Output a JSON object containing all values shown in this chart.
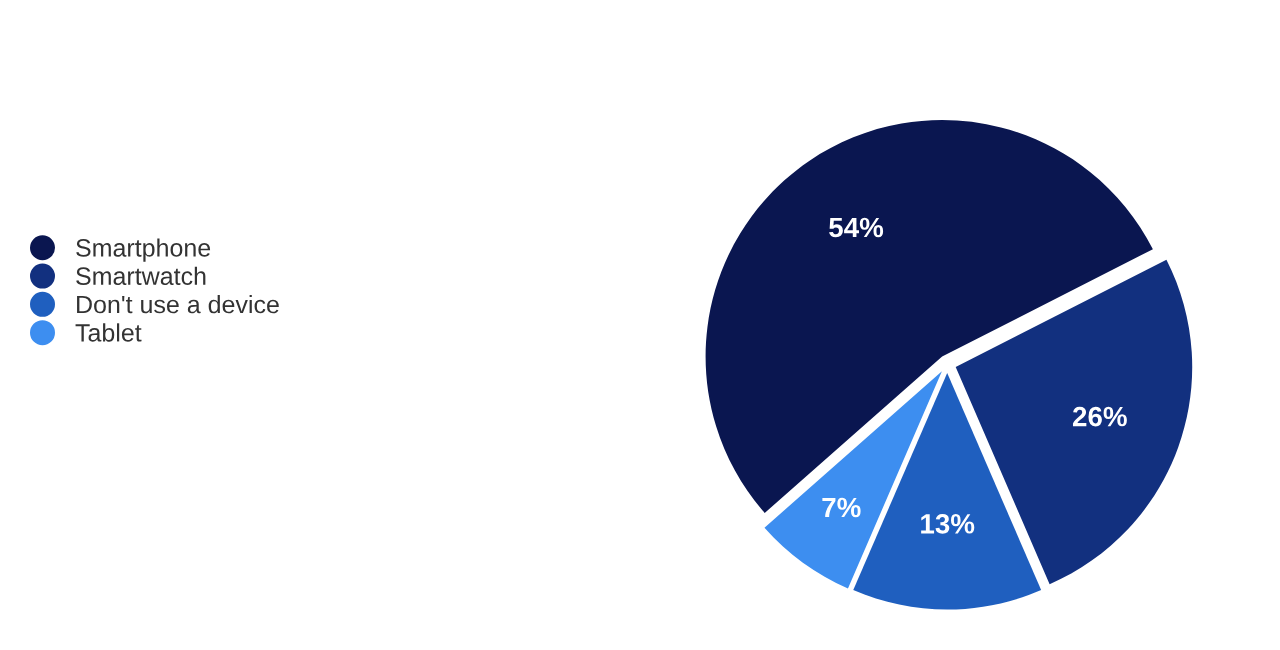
{
  "chart_data": {
    "type": "pie",
    "categories": [
      "Smartphone",
      "Smartwatch",
      "Don't use a device",
      "Tablet"
    ],
    "values": [
      54,
      26,
      13,
      7
    ],
    "colors": [
      "#0a1650",
      "#12307f",
      "#1f5fbf",
      "#3d8ef0"
    ],
    "value_labels": [
      "54%",
      "26%",
      "13%",
      "7%"
    ],
    "legend": "left"
  }
}
